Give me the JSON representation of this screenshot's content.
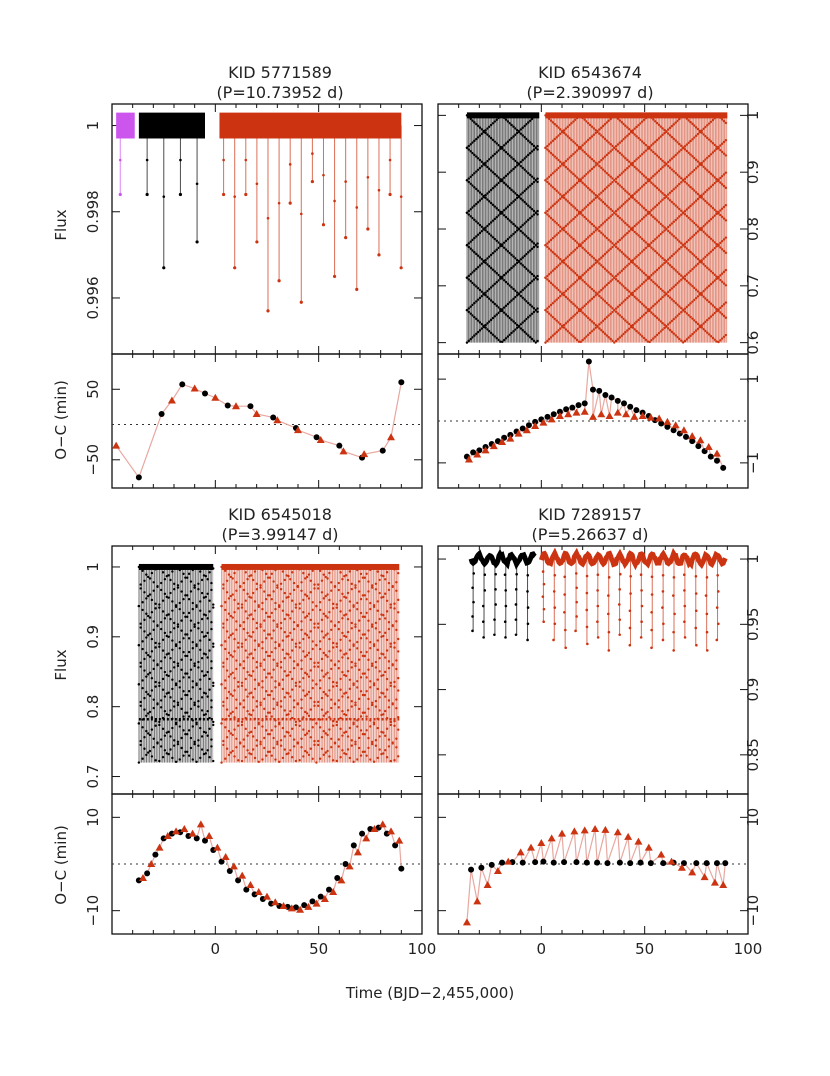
{
  "figure": {
    "xlabel": "Time (BJD−2,455,000)",
    "colors": {
      "quarter_a": "#000000",
      "quarter_b": "#cc3311",
      "quarter_c": "#cc55ee"
    },
    "flux_label": "Flux",
    "oc_label": "O−C (min)"
  },
  "chart_data": [
    {
      "type": "line",
      "name": "kid5771589_flux",
      "title_line1": "KID 5771589",
      "title_line2": "(P=10.73952 d)",
      "xlim": [
        -50,
        100
      ],
      "ylim": [
        0.9947,
        1.0005
      ],
      "xticks": [],
      "yticks": [
        0.996,
        0.998,
        1
      ],
      "ytick_labels": [
        "0.996",
        "0.998",
        "1"
      ],
      "yaxis_side": "left",
      "period": 10.73952,
      "depth": 0.0044,
      "dip_depths": [
        0.0016,
        0.0033,
        0.0016,
        0.0027,
        0.0043,
        0.0036,
        0.0018,
        0.0041,
        0.0013,
        0.0023,
        0.0035,
        0.0026,
        0.0038,
        0.0024,
        0.003
      ],
      "segments": [
        {
          "x0": -48,
          "x1": -39,
          "color": "#cc55ee"
        },
        {
          "x0": -37,
          "x1": -5,
          "color": "#000000"
        },
        {
          "x0": 2,
          "x1": 90,
          "color": "#cc3311"
        }
      ]
    },
    {
      "type": "line",
      "name": "kid6543674_flux",
      "title_line1": "KID 6543674",
      "title_line2": "(P=2.390997 d)",
      "xlim": [
        -50,
        100
      ],
      "ylim": [
        0.58,
        1.02
      ],
      "xticks": [],
      "yticks": [
        0.6,
        0.7,
        0.8,
        0.9,
        1
      ],
      "ytick_labels": [
        "0.6",
        "0.7",
        "0.8",
        "0.9",
        "1"
      ],
      "yaxis_side": "right",
      "period": 2.390997,
      "depth": 0.4,
      "segments": [
        {
          "x0": -36,
          "x1": -1,
          "color": "#000000"
        },
        {
          "x0": 2,
          "x1": 90,
          "color": "#cc3311"
        }
      ]
    },
    {
      "type": "scatter",
      "name": "kid5771589_oc",
      "xlim": [
        -50,
        100
      ],
      "ylim": [
        -90,
        100
      ],
      "xticks": [],
      "yticks": [
        -50,
        50
      ],
      "ytick_labels": [
        "−50",
        "50"
      ],
      "yaxis_side": "left",
      "series": [
        {
          "name": "q_black",
          "marker": "circle",
          "color": "#000000",
          "x": [
            -37,
            -26,
            -16,
            -5,
            6,
            17,
            28,
            39,
            49,
            60,
            71,
            81,
            90
          ],
          "y": [
            -75,
            15,
            57,
            44,
            27,
            26,
            10,
            -5,
            -18,
            -30,
            -47,
            -37,
            60
          ]
        },
        {
          "name": "q_red",
          "marker": "triangle",
          "color": "#cc3311",
          "x": [
            -48,
            -21,
            -10,
            0,
            10,
            20,
            30,
            40,
            51,
            62,
            72,
            85
          ],
          "y": [
            -30,
            34,
            51,
            38,
            26,
            15,
            6,
            -8,
            -22,
            -38,
            -42,
            -18
          ]
        }
      ]
    },
    {
      "type": "scatter",
      "name": "kid6543674_oc",
      "xlim": [
        -50,
        100
      ],
      "ylim": [
        -1.6,
        1.6
      ],
      "xticks": [],
      "yticks": [
        -1,
        1
      ],
      "ytick_labels": [
        "−1",
        "1"
      ],
      "yaxis_side": "right",
      "series": [
        {
          "name": "q_black",
          "marker": "circle",
          "color": "#000000",
          "x": [
            -36,
            -33,
            -30,
            -27,
            -24,
            -21,
            -18,
            -15,
            -12,
            -9,
            -6,
            -3,
            0,
            3,
            6,
            9,
            12,
            15,
            18,
            21,
            23,
            25,
            28,
            31,
            34,
            37,
            40,
            43,
            46,
            49,
            52,
            55,
            58,
            61,
            64,
            67,
            70,
            73,
            76,
            79,
            82,
            85,
            88
          ],
          "y": [
            -0.85,
            -0.75,
            -0.7,
            -0.62,
            -0.55,
            -0.48,
            -0.4,
            -0.33,
            -0.25,
            -0.18,
            -0.1,
            -0.02,
            0.04,
            0.1,
            0.16,
            0.22,
            0.28,
            0.32,
            0.38,
            0.42,
            1.42,
            0.75,
            0.72,
            0.62,
            0.56,
            0.48,
            0.42,
            0.34,
            0.26,
            0.2,
            0.12,
            0.02,
            -0.06,
            -0.14,
            -0.22,
            -0.3,
            -0.38,
            -0.48,
            -0.6,
            -0.72,
            -0.85,
            -0.95,
            -1.12
          ]
        },
        {
          "name": "q_red",
          "marker": "triangle",
          "color": "#cc3311",
          "x": [
            -35,
            -31,
            -27,
            -23,
            -19,
            -15,
            -11,
            -7,
            -3,
            1,
            5,
            9,
            13,
            17,
            21,
            25,
            29,
            33,
            37,
            41,
            45,
            49,
            53,
            57,
            61,
            65,
            69,
            73,
            77,
            81,
            85
          ],
          "y": [
            -0.92,
            -0.8,
            -0.7,
            -0.6,
            -0.5,
            -0.42,
            -0.3,
            -0.22,
            -0.12,
            -0.04,
            0.04,
            0.12,
            0.16,
            0.2,
            0.22,
            0.1,
            0.16,
            0.12,
            0.2,
            0.16,
            0.1,
            0.12,
            0.08,
            0.06,
            -0.02,
            -0.1,
            -0.22,
            -0.36,
            -0.46,
            -0.62,
            -0.78
          ]
        }
      ]
    },
    {
      "type": "line",
      "name": "kid6545018_flux",
      "title_line1": "KID 6545018",
      "title_line2": "(P=3.99147 d)",
      "xlim": [
        -50,
        100
      ],
      "ylim": [
        0.675,
        1.03
      ],
      "xticks": [],
      "yticks": [
        0.7,
        0.8,
        0.9,
        1
      ],
      "ytick_labels": [
        "0.7",
        "0.8",
        "0.9",
        "1"
      ],
      "yaxis_side": "left",
      "period": 3.99147,
      "depth": 0.28,
      "secondary_depth": 0.218,
      "segments": [
        {
          "x0": -37,
          "x1": -1,
          "color": "#000000"
        },
        {
          "x0": 3,
          "x1": 89,
          "color": "#cc3311"
        }
      ]
    },
    {
      "type": "line",
      "name": "kid7289157_flux",
      "title_line1": "KID 7289157",
      "title_line2": "(P=5.26637 d)",
      "xlim": [
        -50,
        100
      ],
      "ylim": [
        0.82,
        1.01
      ],
      "xticks": [],
      "yticks": [
        0.85,
        0.9,
        0.95,
        1
      ],
      "ytick_labels": [
        "0.85",
        "0.9",
        "0.95",
        "1"
      ],
      "yaxis_side": "right",
      "period": 5.26637,
      "dip_depths_black": [
        0.055,
        0.06,
        0.058,
        0.06,
        0.058,
        0.062,
        0.06,
        0.175
      ],
      "dip_depths_red": [
        0.048,
        0.062,
        0.068,
        0.055,
        0.065,
        0.06,
        0.07,
        0.058,
        0.066,
        0.06,
        0.068,
        0.062,
        0.07,
        0.06,
        0.066,
        0.07,
        0.062
      ],
      "segments": [
        {
          "x0": -34,
          "x1": -3,
          "color": "#000000"
        },
        {
          "x0": 0,
          "x1": 89,
          "color": "#cc3311"
        }
      ]
    },
    {
      "type": "scatter",
      "name": "kid6545018_oc",
      "xlim": [
        -50,
        100
      ],
      "ylim": [
        -15,
        15
      ],
      "xticks": [
        0,
        50,
        100
      ],
      "xtick_labels": [
        "0",
        "50",
        "100"
      ],
      "yticks": [
        -10,
        10
      ],
      "ytick_labels": [
        "−10",
        "10"
      ],
      "yaxis_side": "left",
      "series": [
        {
          "name": "q_black",
          "marker": "circle",
          "color": "#000000",
          "x": [
            -37,
            -33,
            -29,
            -25,
            -21,
            -17,
            -13,
            -9,
            -5,
            -1,
            3,
            7,
            11,
            15,
            19,
            23,
            27,
            31,
            35,
            39,
            43,
            47,
            51,
            55,
            59,
            63,
            67,
            71,
            75,
            79,
            83,
            87,
            90
          ],
          "y": [
            -3.5,
            -2,
            2,
            5.5,
            6.5,
            6.8,
            6,
            5.5,
            5,
            3,
            0.5,
            -1.5,
            -3.5,
            -5.5,
            -6.5,
            -7.5,
            -8.5,
            -9,
            -9.2,
            -9.3,
            -8.8,
            -8,
            -7,
            -5.5,
            -3,
            0,
            4,
            6.5,
            7.5,
            7.8,
            6.5,
            4,
            -1
          ]
        },
        {
          "name": "q_red",
          "marker": "triangle",
          "color": "#cc3311",
          "x": [
            -35,
            -31,
            -27,
            -23,
            -19,
            -15,
            -11,
            -7,
            -3,
            1,
            5,
            9,
            13,
            17,
            21,
            25,
            29,
            33,
            37,
            41,
            45,
            49,
            53,
            57,
            61,
            65,
            69,
            73,
            77,
            81,
            85,
            89
          ],
          "y": [
            -3,
            0,
            3.5,
            6,
            7,
            7.5,
            6.5,
            8.5,
            6,
            3.5,
            1.5,
            -0.5,
            -2.5,
            -4.5,
            -6,
            -7,
            -8.2,
            -9,
            -9.5,
            -9.8,
            -9.2,
            -8.5,
            -7.5,
            -6,
            -3.5,
            -0.5,
            2.5,
            5.5,
            7.5,
            8.5,
            7,
            5
          ]
        }
      ]
    },
    {
      "type": "scatter",
      "name": "kid7289157_oc",
      "xlim": [
        -50,
        100
      ],
      "ylim": [
        -15,
        15
      ],
      "xticks": [
        0,
        50,
        100
      ],
      "xtick_labels": [
        "0",
        "50",
        "100"
      ],
      "yticks": [
        -10,
        10
      ],
      "ytick_labels": [
        "−10",
        "10"
      ],
      "yaxis_side": "right",
      "series": [
        {
          "name": "q_black",
          "marker": "circle",
          "color": "#000000",
          "x": [
            -34,
            -29,
            -24,
            -19,
            -14,
            -9,
            -3,
            1,
            6,
            11,
            17,
            22,
            27,
            32,
            38,
            43,
            48,
            53,
            59,
            64,
            69,
            75,
            80,
            85,
            89
          ],
          "y": [
            -1.2,
            -0.8,
            -0.2,
            0.3,
            0.4,
            0.3,
            0.4,
            0.5,
            0.3,
            0.4,
            0.4,
            0.3,
            0.3,
            0.2,
            0.3,
            0.2,
            0.3,
            0.2,
            0.2,
            0.3,
            0.2,
            0.2,
            0.2,
            0.2,
            0.2
          ]
        },
        {
          "name": "q_red",
          "marker": "triangle",
          "color": "#cc3311",
          "x": [
            -36,
            -31,
            -26,
            -21,
            -16,
            -10,
            -5,
            0,
            5,
            10,
            16,
            21,
            26,
            31,
            37,
            42,
            47,
            52,
            58,
            63,
            68,
            73,
            79,
            84,
            88
          ],
          "y": [
            -12.5,
            -8,
            -4.5,
            -1.5,
            0.5,
            2.5,
            3.5,
            4.5,
            5.5,
            6.5,
            7,
            7.2,
            7.5,
            7.3,
            6.8,
            5.8,
            4.8,
            3.5,
            2,
            0.5,
            -0.8,
            -1.8,
            -2.8,
            -4,
            -4.5
          ]
        }
      ]
    }
  ]
}
